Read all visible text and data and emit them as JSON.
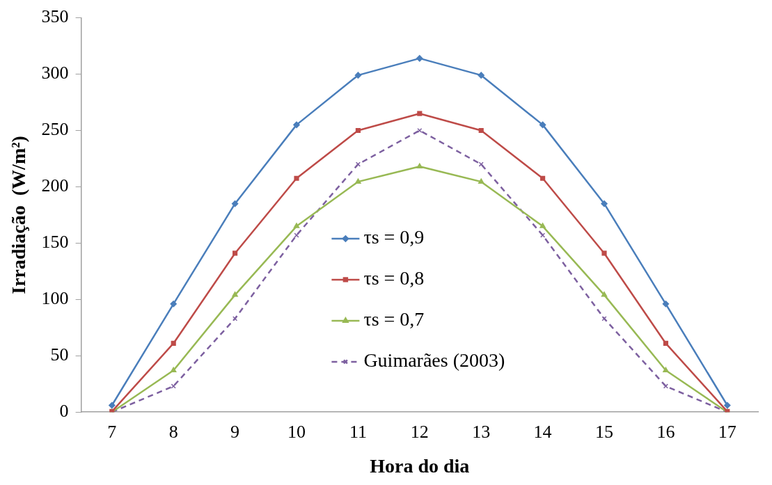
{
  "chart_data": {
    "type": "line",
    "xlabel": "Hora do dia",
    "ylabel": "Irradiação  (W/m²)",
    "categories": [
      "7",
      "8",
      "9",
      "10",
      "11",
      "12",
      "13",
      "14",
      "15",
      "16",
      "17"
    ],
    "series": [
      {
        "name": "τs = 0,9",
        "color": "#4a7ebb",
        "marker": "diamond",
        "line_style": "solid",
        "values": [
          6,
          96,
          185,
          255,
          299,
          314,
          299,
          255,
          185,
          96,
          6
        ]
      },
      {
        "name": "τs = 0,8",
        "color": "#be4b48",
        "marker": "square",
        "line_style": "solid",
        "values": [
          0.5,
          61,
          141,
          207.5,
          250,
          265,
          250,
          207.5,
          141,
          61,
          0.5
        ]
      },
      {
        "name": "τs = 0,7",
        "color": "#98b954",
        "marker": "triangle",
        "line_style": "solid",
        "values": [
          0,
          37,
          104,
          165,
          204.5,
          218,
          204.5,
          165,
          104,
          37,
          0
        ]
      },
      {
        "name": "Guimarães (2003)",
        "color": "#7d60a0",
        "marker": "cross",
        "line_style": "dashed",
        "values": [
          0,
          23,
          83,
          157,
          220,
          250,
          220,
          157,
          83,
          23,
          0
        ]
      }
    ],
    "ylim": [
      0,
      350
    ],
    "yticks": [
      0,
      50,
      100,
      150,
      200,
      250,
      300,
      350
    ],
    "grid": false,
    "legend": "center"
  }
}
